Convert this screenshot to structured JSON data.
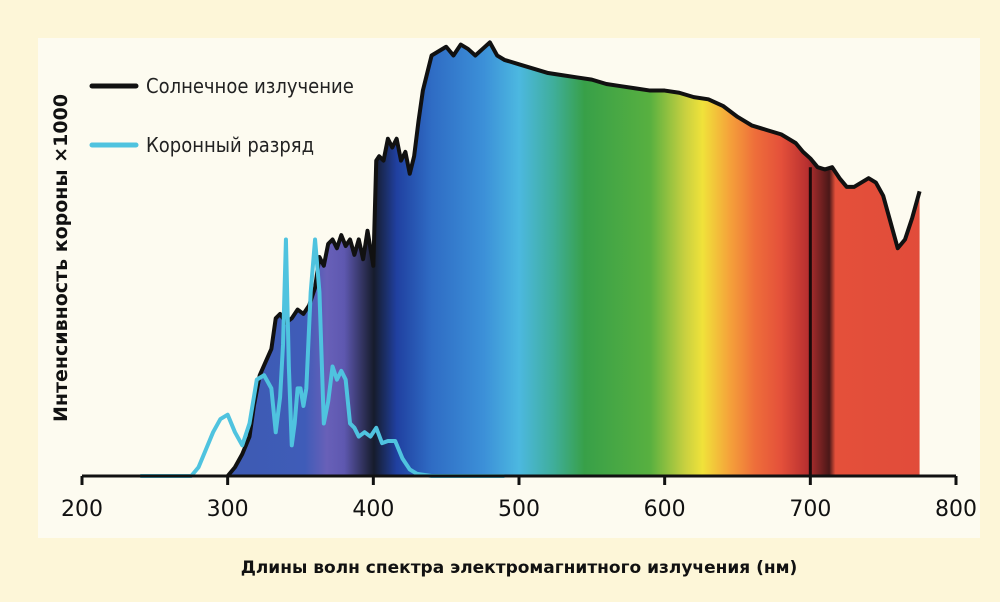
{
  "chart_data": {
    "type": "area",
    "xlabel": "Длины волн спектра электромагнитного излучения (нм)",
    "ylabel": "Интенсивность короны ×1000",
    "xlim": [
      200,
      800
    ],
    "ylim": [
      0,
      1000
    ],
    "x_ticks": [
      "200",
      "300",
      "400",
      "500",
      "600",
      "700",
      "800"
    ],
    "grid": false,
    "legend_position": "top-left",
    "series": [
      {
        "name": "Солнечное излучение",
        "color": "#111111",
        "x": [
          300,
          305,
          310,
          315,
          318,
          322,
          326,
          330,
          333,
          336,
          340,
          344,
          348,
          352,
          356,
          360,
          363,
          366,
          369,
          372,
          375,
          378,
          381,
          384,
          387,
          390,
          393,
          396,
          398,
          400,
          402,
          404,
          407,
          410,
          413,
          416,
          419,
          422,
          425,
          428,
          431,
          434,
          437,
          440,
          445,
          450,
          455,
          460,
          465,
          470,
          475,
          480,
          485,
          490,
          500,
          510,
          520,
          530,
          540,
          550,
          560,
          570,
          580,
          590,
          600,
          610,
          620,
          630,
          640,
          650,
          660,
          670,
          680,
          690,
          695,
          700,
          705,
          710,
          715,
          720,
          725,
          730,
          735,
          740,
          745,
          750,
          755,
          760,
          765,
          770,
          775
        ],
        "y": [
          0,
          20,
          50,
          90,
          160,
          230,
          260,
          290,
          360,
          370,
          350,
          360,
          380,
          370,
          390,
          430,
          500,
          480,
          530,
          540,
          520,
          550,
          525,
          540,
          505,
          540,
          495,
          560,
          520,
          480,
          720,
          730,
          720,
          770,
          750,
          770,
          720,
          740,
          690,
          730,
          810,
          880,
          920,
          960,
          970,
          980,
          960,
          985,
          975,
          960,
          975,
          990,
          960,
          950,
          940,
          930,
          920,
          915,
          910,
          905,
          895,
          890,
          885,
          880,
          880,
          875,
          865,
          860,
          845,
          820,
          800,
          790,
          780,
          760,
          740,
          725,
          705,
          700,
          705,
          680,
          660,
          660,
          670,
          680,
          670,
          640,
          580,
          520,
          540,
          590,
          650
        ]
      },
      {
        "name": "Коронный разряд",
        "color": "#4fc3df",
        "x": [
          240,
          260,
          275,
          280,
          285,
          290,
          295,
          300,
          305,
          310,
          315,
          320,
          325,
          330,
          333,
          336,
          338,
          340,
          342,
          344,
          346,
          348,
          350,
          352,
          354,
          357,
          360,
          363,
          366,
          369,
          372,
          375,
          378,
          381,
          384,
          387,
          390,
          394,
          398,
          402,
          406,
          410,
          415,
          420,
          425,
          430,
          440,
          450,
          460,
          470,
          480,
          490
        ],
        "y": [
          0,
          0,
          0,
          20,
          60,
          100,
          130,
          140,
          100,
          70,
          120,
          220,
          230,
          200,
          100,
          180,
          300,
          540,
          250,
          70,
          120,
          200,
          200,
          160,
          200,
          420,
          540,
          420,
          120,
          170,
          250,
          220,
          240,
          220,
          120,
          110,
          90,
          100,
          90,
          110,
          75,
          80,
          80,
          40,
          15,
          5,
          0,
          0,
          0,
          0,
          0,
          0
        ]
      }
    ]
  }
}
